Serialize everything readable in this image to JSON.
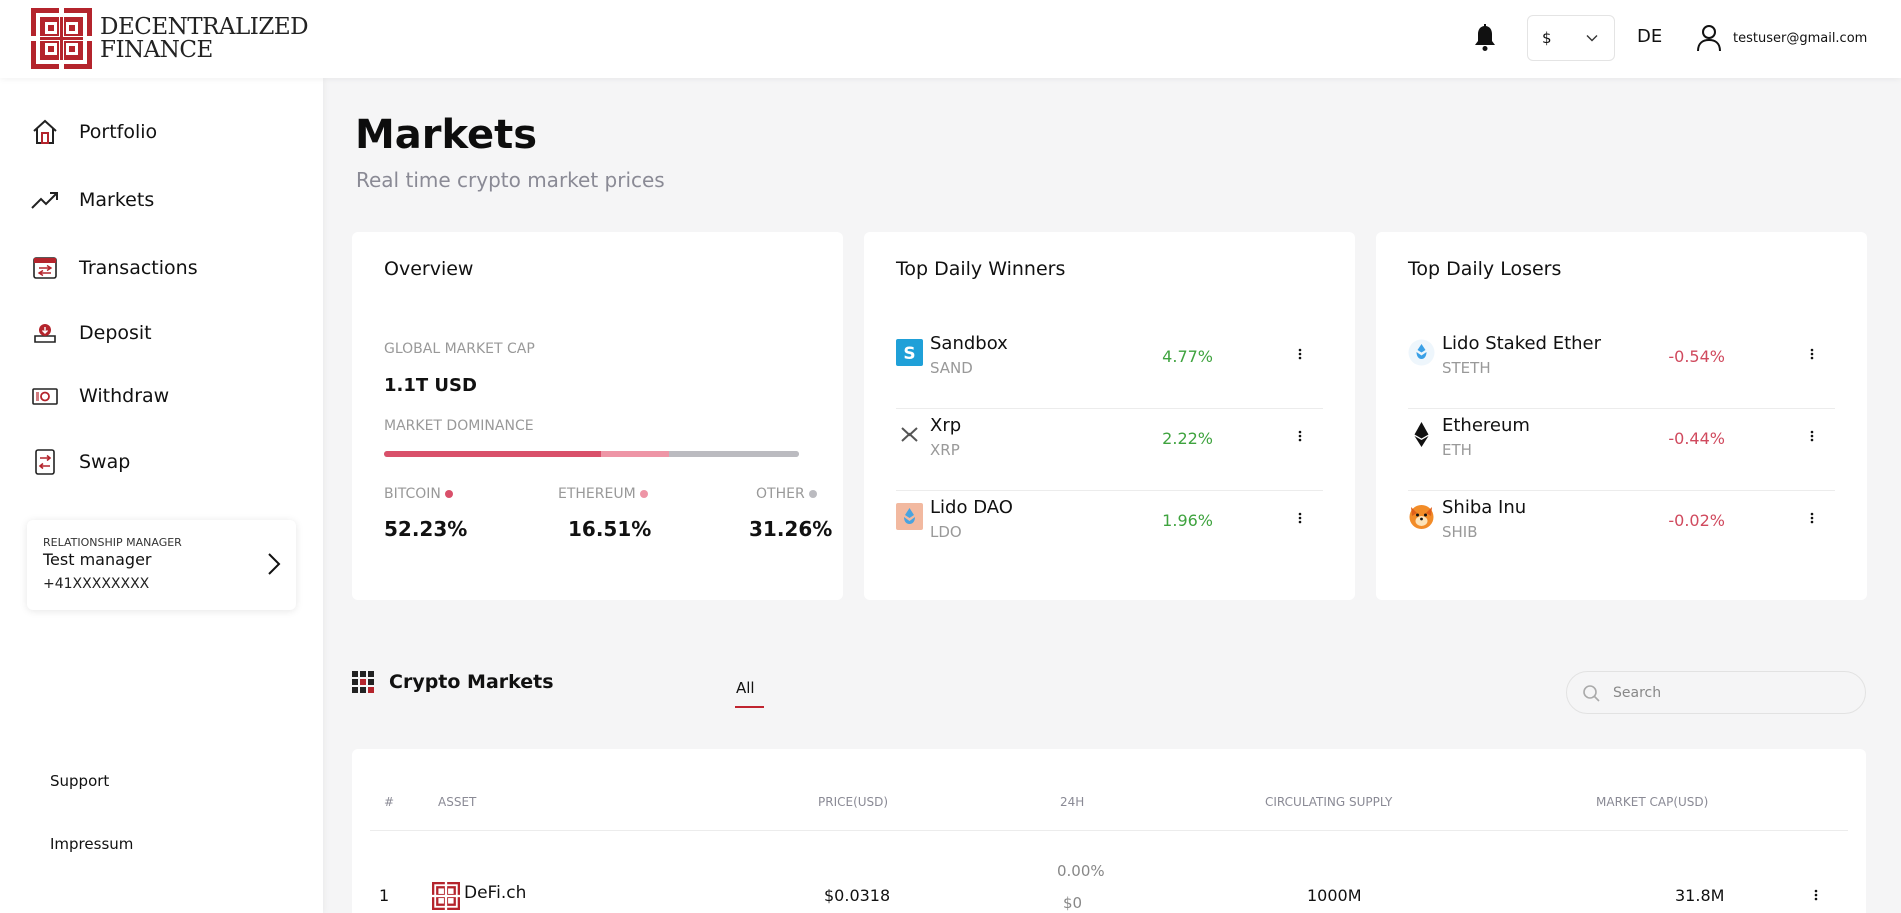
{
  "brand": {
    "line1": "DECENTRALIZED",
    "line2": "FINANCE",
    "color": "#b4242c"
  },
  "header": {
    "currency": "$",
    "language": "DE",
    "user_email": "testuser@gmail.com"
  },
  "sidebar": {
    "items": [
      {
        "label": "Portfolio",
        "icon": "home-icon"
      },
      {
        "label": "Markets",
        "icon": "trending-up-icon"
      },
      {
        "label": "Transactions",
        "icon": "transactions-icon"
      },
      {
        "label": "Deposit",
        "icon": "deposit-icon"
      },
      {
        "label": "Withdraw",
        "icon": "withdraw-icon"
      },
      {
        "label": "Swap",
        "icon": "swap-icon"
      }
    ],
    "manager": {
      "title": "RELATIONSHIP MANAGER",
      "name": "Test manager",
      "phone": "+41XXXXXXXX"
    },
    "links": {
      "support": "Support",
      "impressum": "Impressum"
    }
  },
  "page": {
    "title": "Markets",
    "subtitle": "Real time crypto market prices"
  },
  "overview": {
    "title": "Overview",
    "market_cap_label": "GLOBAL MARKET CAP",
    "market_cap_value": "1.1T USD",
    "dominance_label": "MARKET DOMINANCE",
    "dominance": [
      {
        "label": "BITCOIN",
        "value": "52.23%",
        "percent": 52.23,
        "color": "#d9506a"
      },
      {
        "label": "ETHEREUM",
        "value": "16.51%",
        "percent": 16.51,
        "color": "#ee95a6"
      },
      {
        "label": "OTHER",
        "value": "31.26%",
        "percent": 31.26,
        "color": "#bbbbc0"
      }
    ]
  },
  "winners": {
    "title": "Top Daily Winners",
    "items": [
      {
        "name": "Sandbox",
        "symbol": "SAND",
        "change": "4.77%",
        "icon": "sandbox-icon"
      },
      {
        "name": "Xrp",
        "symbol": "XRP",
        "change": "2.22%",
        "icon": "xrp-icon"
      },
      {
        "name": "Lido DAO",
        "symbol": "LDO",
        "change": "1.96%",
        "icon": "lido-dao-icon"
      }
    ]
  },
  "losers": {
    "title": "Top Daily Losers",
    "items": [
      {
        "name": "Lido Staked Ether",
        "symbol": "STETH",
        "change": "-0.54%",
        "icon": "lido-steth-icon"
      },
      {
        "name": "Ethereum",
        "symbol": "ETH",
        "change": "-0.44%",
        "icon": "ethereum-icon"
      },
      {
        "name": "Shiba Inu",
        "symbol": "SHIB",
        "change": "-0.02%",
        "icon": "shiba-inu-icon"
      }
    ]
  },
  "crypto_markets": {
    "title": "Crypto Markets",
    "tab_all": "All",
    "search_placeholder": "Search",
    "columns": {
      "index": "#",
      "asset": "ASSET",
      "price": "PRICE(USD)",
      "change": "24H",
      "supply": "CIRCULATING SUPPLY",
      "market_cap": "MARKET CAP(USD)"
    },
    "rows": [
      {
        "index": "1",
        "asset": "DeFi.ch",
        "price": "$0.0318",
        "change_pct": "0.00%",
        "change_abs": "$0",
        "supply": "1000M",
        "market_cap": "31.8M"
      }
    ]
  }
}
